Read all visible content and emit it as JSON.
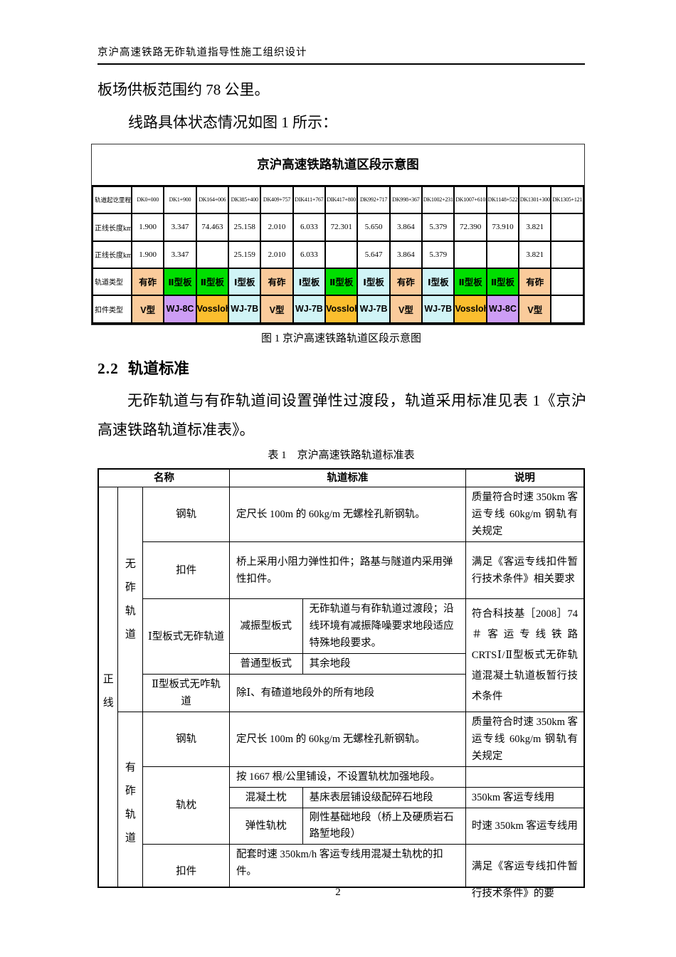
{
  "page": {
    "header_title": "京沪高速铁路无砟轨道指导性施工组织设计",
    "page_number": "2"
  },
  "body": {
    "para1": "板场供板范围约 78 公里。",
    "para2": "线路具体状态情况如图 1 所示：",
    "figure_caption": "图 1 京沪高速铁路轨道区段示意图",
    "section_heading_number": "2.2",
    "section_heading_title": "轨道标准",
    "section_para": "无砟轨道与有砟轨道间设置弹性过渡段，轨道采用标准见表 1《京沪高速铁路轨道标准表》。",
    "table_caption": "表 1　京沪高速铁路轨道标准表"
  },
  "chart_data": {
    "type": "table",
    "title": "京沪高速铁路轨道区段示意图",
    "row_labels": [
      "轨道起讫里程",
      "正线长度km",
      "正线长度km",
      "轨道类型",
      "扣件类型"
    ],
    "mileposts": [
      "DK0+000",
      "DK1+900",
      "DK164+006",
      "DK385+400",
      "DK409+757",
      "DIK411+767",
      "DIK417+800",
      "DK992+717",
      "DK998+367",
      "DK1002+231",
      "DK1007+610",
      "DK1148+522",
      "DK1301+300",
      "DK1305+121"
    ],
    "main_length_km_1": [
      "1.900",
      "3.347",
      "74.463",
      "25.158",
      "2.010",
      "6.033",
      "72.301",
      "5.650",
      "3.864",
      "5.379",
      "72.390",
      "73.910",
      "3.821",
      ""
    ],
    "main_length_km_2": [
      "1.900",
      "3.347",
      "",
      "25.159",
      "2.010",
      "6.033",
      "",
      "5.647",
      "3.864",
      "5.379",
      "",
      "",
      "3.821",
      ""
    ],
    "track_types": [
      "有砟",
      "Ⅱ型板",
      "Ⅱ型板",
      "Ⅰ型板",
      "有砟",
      "Ⅰ型板",
      "Ⅱ型板",
      "Ⅰ型板",
      "有砟",
      "Ⅰ型板",
      "Ⅱ型板",
      "Ⅱ型板",
      "有砟",
      ""
    ],
    "fastener_types": [
      "V型",
      "WJ-8C",
      "Vossloh",
      "WJ-7B",
      "V型",
      "WJ-7B",
      "Vossloh",
      "WJ-7B",
      "V型",
      "WJ-7B",
      "Vossloh",
      "WJ-8C",
      "V型",
      ""
    ],
    "colors": {
      "有砟": "#FACB9B",
      "Ⅱ型板": "#00DF00",
      "Ⅰ型板": "#D0F4F6",
      "V型": "#FACB9B",
      "WJ-8C": "#CD9DF5",
      "Vossloh": "#FBBE2E",
      "WJ-7B": "#D0F4F6"
    }
  },
  "standards_table": {
    "headers": {
      "name": "名称",
      "standard": "轨道标准",
      "note": "说明"
    },
    "main_line_vertical": "正\n线",
    "ballastless_vertical": "无\n砟\n轨\n道",
    "ballasted_vertical": "有\n砟\n轨\n道",
    "rows": {
      "bl_rail_name": "钢轨",
      "bl_rail_std": "定尺长 100m 的 60kg/m 无螺栓孔新钢轨。",
      "bl_rail_note": "质量符合时速 350km 客运专线 60kg/m 钢轨有关规定",
      "bl_fastener_name": "扣件",
      "bl_fastener_std": "桥上采用小阻力弹性扣件；路基与隧道内采用弹性扣件。",
      "bl_fastener_note": "满足《客运专线扣件暂行技术条件》相关要求",
      "type1_name": "Ⅰ型板式无砟轨道",
      "damping_name": "减振型板式",
      "damping_std": "无砟轨道与有砟轨道过渡段；沿线环境有减振降噪要求地段适应特殊地段要求。",
      "normal_name": "普通型板式",
      "normal_std": "其余地段",
      "type2_name": "Ⅱ型板式无咋轨道",
      "type2_std": "除Ⅰ、有碴道地段外的所有地段",
      "slab_note": "符合科技基［2008］74＃客运专线铁路 CRTSⅠ/Ⅱ型板式无砟轨道混凝土轨道板暂行技术条件",
      "bd_rail_name": "钢轨",
      "bd_rail_std": "定尺长 100m 的 60kg/m 无螺栓孔新钢轨。",
      "bd_rail_note": "质量符合时速 350km 客运专线 60kg/m 钢轨有关规定",
      "sleeper_name": "轨枕",
      "sleeper_std": "按 1667 根/公里铺设，不设置轨枕加强地段。",
      "sleeper_note": "",
      "concrete_name": "混凝土枕",
      "concrete_std": "基床表层铺设级配碎石地段",
      "concrete_note": "350km 客运专线用",
      "elastic_name": "弹性轨枕",
      "elastic_std": "刚性基础地段（桥上及硬质岩石路堑地段）",
      "elastic_note": "时速 350km 客运专线用",
      "bd_fastener_name": "扣件",
      "bd_fastener_std": "配套时速 350km/h 客运专线用混凝土轨枕的扣件。",
      "bd_fastener_note": "满足《客运专线扣件暂行技术条件》的要"
    }
  }
}
